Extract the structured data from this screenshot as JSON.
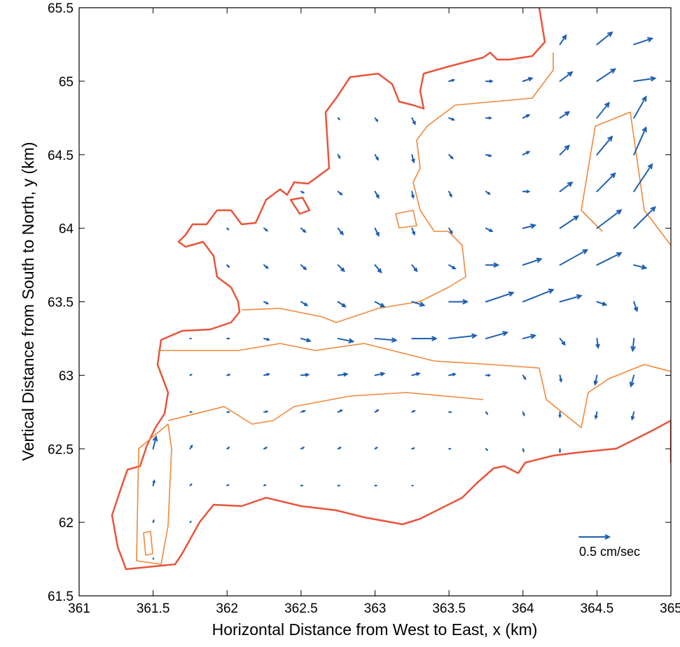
{
  "chart_data": {
    "type": "quiver",
    "xlabel": "Horizontal Distance from West to East, x (km)",
    "ylabel": "Vertical Distance from South to North, y (km)",
    "xlim": [
      361,
      365
    ],
    "ylim": [
      61.5,
      65.5
    ],
    "xticks": [
      361,
      361.5,
      362,
      362.5,
      363,
      363.5,
      364,
      364.5,
      365
    ],
    "yticks": [
      61.5,
      62,
      62.5,
      63,
      63.5,
      64,
      64.5,
      65,
      65.5
    ],
    "color": "#1f5fb0",
    "key": {
      "value": 0.5,
      "label": "0.5 cm/sec"
    },
    "x": [
      364.25,
      364.5,
      364.75,
      363.5,
      363.75,
      364,
      364.25,
      364.5,
      364.75,
      362.75,
      363,
      363.25,
      363.5,
      363.75,
      364,
      364.25,
      364.5,
      364.75,
      362.75,
      363,
      363.25,
      363.5,
      363.75,
      364,
      364.25,
      364.5,
      364.75,
      362.5,
      362.75,
      363,
      363.25,
      363.5,
      363.75,
      364,
      364.25,
      364.5,
      364.75,
      362,
      362.25,
      362.5,
      362.75,
      363,
      363.25,
      363.5,
      363.75,
      364,
      364.25,
      364.5,
      364.75,
      362,
      362.25,
      362.5,
      362.75,
      363,
      363.25,
      363.5,
      363.75,
      364,
      364.25,
      364.5,
      364.75,
      362.25,
      362.5,
      362.75,
      363,
      363.25,
      363.5,
      363.75,
      364,
      364.25,
      364.5,
      364.75,
      361.75,
      362,
      362.25,
      362.5,
      362.75,
      363,
      363.25,
      363.5,
      363.75,
      364,
      364.25,
      364.5,
      364.75,
      361.75,
      362,
      362.25,
      362.5,
      362.75,
      363,
      363.25,
      363.5,
      363.75,
      364,
      364.25,
      364.5,
      364.75,
      361.75,
      362,
      362.25,
      362.5,
      362.75,
      363,
      363.25,
      363.5,
      363.75,
      364,
      364.25,
      364.5,
      364.75,
      361.5,
      361.75,
      362,
      362.25,
      362.5,
      362.75,
      363,
      363.25,
      363.5,
      363.75,
      364,
      364.25,
      361.5,
      361.75,
      362,
      362.25,
      362.5,
      362.75,
      363,
      363.25,
      361.5,
      361.75,
      361.5
    ],
    "y": [
      65.25,
      65.25,
      65.25,
      65,
      65,
      65,
      65,
      65,
      65,
      64.75,
      64.75,
      64.75,
      64.75,
      64.75,
      64.75,
      64.75,
      64.75,
      64.75,
      64.5,
      64.5,
      64.5,
      64.5,
      64.5,
      64.5,
      64.5,
      64.5,
      64.5,
      64.25,
      64.25,
      64.25,
      64.25,
      64.25,
      64.25,
      64.25,
      64.25,
      64.25,
      64.25,
      64,
      64,
      64,
      64,
      64,
      64,
      64,
      64,
      64,
      64,
      64,
      64,
      63.75,
      63.75,
      63.75,
      63.75,
      63.75,
      63.75,
      63.75,
      63.75,
      63.75,
      63.75,
      63.75,
      63.75,
      63.5,
      63.5,
      63.5,
      63.5,
      63.5,
      63.5,
      63.5,
      63.5,
      63.5,
      63.5,
      63.5,
      63.25,
      63.25,
      63.25,
      63.25,
      63.25,
      63.25,
      63.25,
      63.25,
      63.25,
      63.25,
      63.25,
      63.25,
      63.25,
      63,
      63,
      63,
      63,
      63,
      63,
      63,
      63,
      63,
      63,
      63,
      63,
      63,
      62.75,
      62.75,
      62.75,
      62.75,
      62.75,
      62.75,
      62.75,
      62.75,
      62.75,
      62.75,
      62.75,
      62.75,
      62.75,
      62.5,
      62.5,
      62.5,
      62.5,
      62.5,
      62.5,
      62.5,
      62.5,
      62.5,
      62.5,
      62.5,
      62.5,
      62.25,
      62.25,
      62.25,
      62.25,
      62.25,
      62.25,
      62.25,
      62.25,
      62,
      62,
      61.75
    ],
    "u": [
      0.1,
      0.25,
      0.3,
      0.08,
      0.1,
      0.15,
      0.2,
      0.3,
      0.35,
      0.02,
      0.04,
      0.05,
      0.08,
      0.08,
      0.1,
      0.15,
      0.2,
      0.2,
      0.03,
      0.05,
      0.03,
      0.06,
      0.08,
      0.1,
      0.15,
      0.25,
      0.2,
      0.04,
      0.06,
      0.06,
      0.02,
      0.04,
      0.06,
      0.1,
      0.2,
      0.3,
      0.3,
      0.02,
      0.05,
      0.07,
      0.08,
      0.06,
      0.04,
      0.05,
      0.1,
      0.2,
      0.3,
      0.4,
      0.35,
      0.03,
      0.06,
      0.08,
      0.1,
      0.1,
      0.08,
      0.1,
      0.2,
      0.3,
      0.45,
      0.4,
      0.2,
      0.06,
      0.1,
      0.12,
      0.15,
      0.2,
      0.3,
      0.45,
      0.5,
      0.35,
      0.15,
      0.05,
      0.01,
      0.03,
      0.08,
      0.15,
      0.25,
      0.35,
      0.4,
      0.45,
      0.35,
      0.2,
      0.08,
      0.02,
      -0.02,
      0.02,
      0.04,
      0.08,
      0.12,
      0.15,
      0.15,
      0.12,
      0.1,
      0.06,
      0.04,
      0.02,
      -0.03,
      -0.05,
      0.02,
      0.03,
      0.05,
      0.06,
      0.06,
      0.05,
      0.04,
      0.03,
      0.02,
      0.02,
      0,
      -0.02,
      -0.03,
      0.05,
      0.03,
      0.03,
      0.04,
      0.04,
      0.04,
      0.03,
      0.03,
      0.02,
      0.02,
      0.01,
      0,
      0.02,
      0.02,
      0.02,
      0.02,
      0.02,
      0.02,
      0.02,
      0.01,
      0.01,
      0.01,
      0.005
    ],
    "v": [
      0.15,
      0.2,
      0.1,
      0.02,
      0,
      0.05,
      0.15,
      0.2,
      0.05,
      -0.02,
      -0.05,
      -0.1,
      -0.03,
      0,
      0.05,
      0.1,
      0.25,
      0.35,
      -0.05,
      -0.08,
      -0.12,
      -0.06,
      -0.02,
      0.05,
      0.15,
      0.3,
      0.45,
      -0.02,
      -0.05,
      -0.1,
      -0.1,
      -0.08,
      -0.04,
      0,
      0.15,
      0.3,
      0.45,
      -0.02,
      -0.04,
      -0.06,
      -0.1,
      -0.12,
      -0.1,
      -0.08,
      -0.05,
      0.05,
      0.2,
      0.3,
      0.35,
      -0.03,
      -0.05,
      -0.07,
      -0.1,
      -0.12,
      -0.1,
      -0.06,
      0,
      0.1,
      0.25,
      0.2,
      -0.05,
      -0.03,
      -0.06,
      -0.08,
      -0.08,
      -0.06,
      0,
      0.15,
      0.2,
      0.1,
      -0.05,
      -0.15,
      0,
      0,
      -0.02,
      -0.04,
      -0.05,
      -0.03,
      0,
      0.05,
      0.1,
      0.05,
      -0.1,
      -0.15,
      -0.2,
      0.01,
      0.01,
      0.02,
      0.01,
      0.02,
      0.03,
      0.03,
      0.02,
      0,
      -0.06,
      -0.1,
      -0.15,
      -0.18,
      0,
      0,
      0.01,
      0.02,
      0.03,
      0.03,
      0.02,
      0,
      -0.03,
      -0.05,
      -0.08,
      -0.1,
      -0.12,
      0.2,
      0.05,
      0.02,
      0.02,
      0.02,
      0.02,
      0.02,
      0.01,
      0,
      -0.02,
      -0.04,
      -0.05,
      0.08,
      0.02,
      0.01,
      0.01,
      0,
      0,
      0,
      0,
      0.03,
      0.01,
      0.01
    ]
  }
}
